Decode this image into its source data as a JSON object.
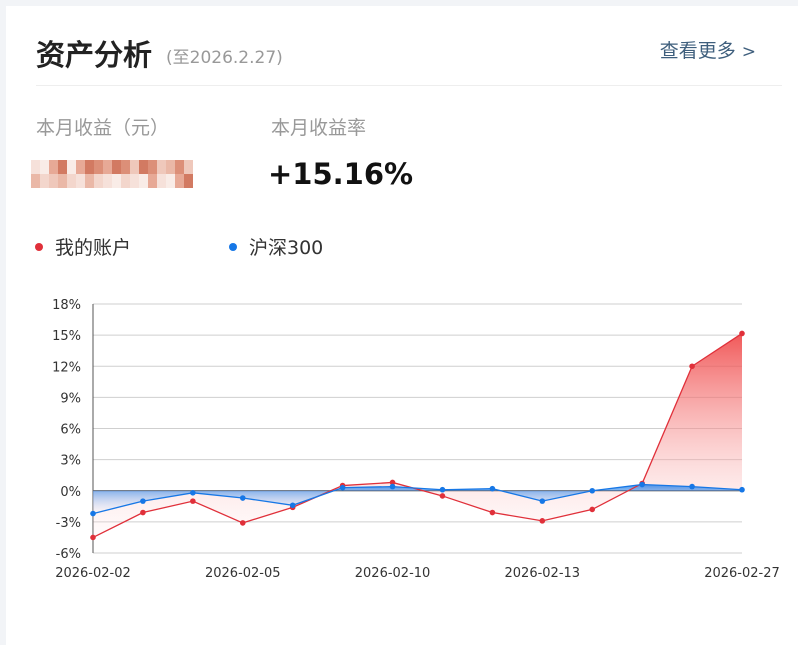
{
  "header": {
    "title": "资产分析",
    "as_of": "(至2026.2.27)",
    "more_link": "查看更多",
    "more_chevron": ">"
  },
  "stats": {
    "monthly_income_label": "本月收益（元）",
    "monthly_return_label": "本月收益率",
    "monthly_return_value": "+15.16%"
  },
  "legend": [
    {
      "name": "我的账户",
      "color": "#e0303a"
    },
    {
      "name": "沪深300",
      "color": "#1677e6"
    }
  ],
  "icons": {
    "more": "chevron-right-icon"
  },
  "chart_data": {
    "type": "area",
    "y_ticks": [
      "18%",
      "15%",
      "12%",
      "9%",
      "6%",
      "3%",
      "0%",
      "-3%",
      "-6%"
    ],
    "ylim": [
      -6,
      18
    ],
    "x_tick_labels": [
      {
        "index": 0,
        "label": "2026-02-02"
      },
      {
        "index": 3,
        "label": "2026-02-05"
      },
      {
        "index": 6,
        "label": "2026-02-10"
      },
      {
        "index": 9,
        "label": "2026-02-13"
      },
      {
        "index": 13,
        "label": "2026-02-27"
      }
    ],
    "x_count": 14,
    "grid": true,
    "series": [
      {
        "name": "我的账户",
        "color": "#e0303a",
        "values": [
          -4.5,
          -2.1,
          -1.0,
          -3.1,
          -1.6,
          0.5,
          0.8,
          -0.5,
          -2.1,
          -2.9,
          -1.8,
          0.7,
          12.0,
          15.16
        ]
      },
      {
        "name": "沪深300",
        "color": "#1677e6",
        "values": [
          -2.2,
          -1.0,
          -0.2,
          -0.7,
          -1.4,
          0.3,
          0.4,
          0.1,
          0.2,
          -1.0,
          0.0,
          0.6,
          0.4,
          0.1
        ]
      }
    ]
  }
}
